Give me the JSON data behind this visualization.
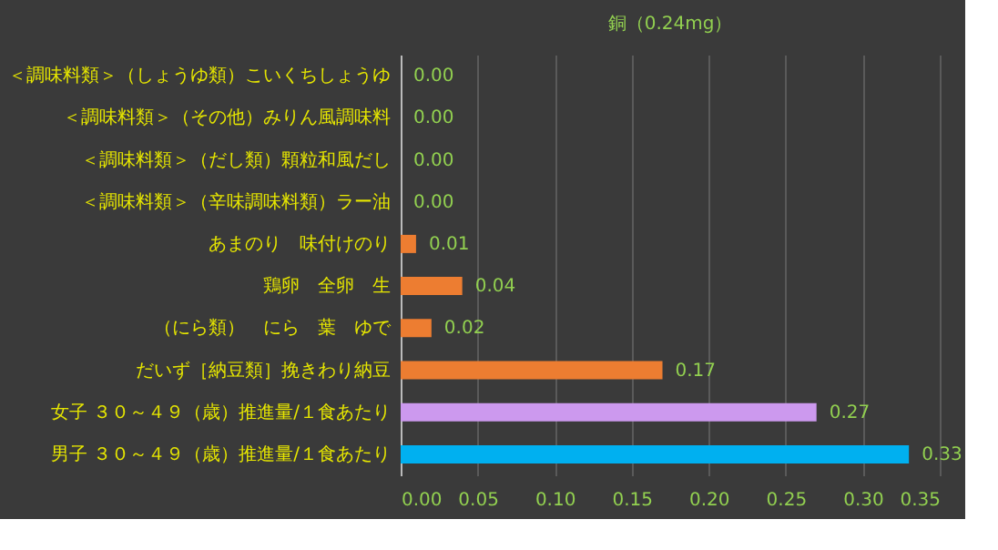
{
  "chart_data": {
    "type": "bar",
    "orientation": "horizontal",
    "title": "銅（0.24mg）",
    "categories": [
      "＜調味料類＞（しょうゆ類）こいくちしょうゆ",
      "＜調味料類＞（その他）みりん風調味料",
      "＜調味料類＞（だし類）顆粒和風だし",
      "＜調味料類＞（辛味調味料類）ラー油",
      "あまのり　味付けのり",
      "鶏卵　全卵　生",
      "（にら類）　にら　葉　ゆで",
      "だいず［納豆類］挽きわり納豆",
      "女子 ３０～４９（歳）推進量/１食あたり",
      "男子 ３０～４９（歳）推進量/１食あたり"
    ],
    "values": [
      0.0,
      0.0,
      0.0,
      0.0,
      0.01,
      0.04,
      0.02,
      0.17,
      0.27,
      0.33
    ],
    "value_labels": [
      "0.00",
      "0.00",
      "0.00",
      "0.00",
      "0.01",
      "0.04",
      "0.02",
      "0.17",
      "0.27",
      "0.33"
    ],
    "colors": [
      "#ed7d31",
      "#ed7d31",
      "#ed7d31",
      "#ed7d31",
      "#ed7d31",
      "#ed7d31",
      "#ed7d31",
      "#ed7d31",
      "#cc99ee",
      "#00b0f0"
    ],
    "xlim": [
      0,
      0.35
    ],
    "xticks": [
      {
        "value": 0,
        "label": "0.00"
      },
      0.05,
      {
        "value": 0.1,
        "label": "0.10"
      },
      0.15,
      {
        "value": 0.2,
        "label": "0.20"
      },
      0.25,
      {
        "value": 0.3,
        "label": "0.30"
      },
      0.35
    ],
    "grid": "x"
  }
}
